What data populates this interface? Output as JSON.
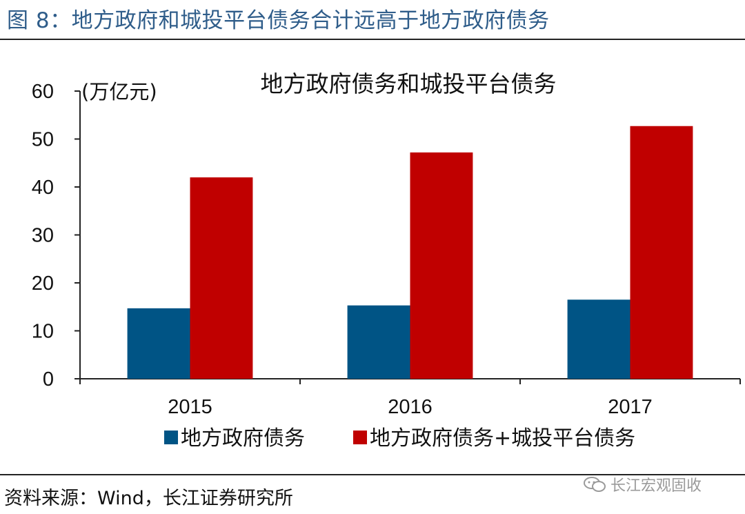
{
  "figure_title": "图 8：地方政府和城投平台债务合计远高于地方政府债务",
  "source": "资料来源：Wind，长江证券研究所",
  "watermark": "长江宏观固收",
  "chart_data": {
    "type": "bar",
    "title": "地方政府债务和城投平台债务",
    "ylabel": "(万亿元)",
    "xlabel": "",
    "categories": [
      "2015",
      "2016",
      "2017"
    ],
    "ylim": [
      0,
      60
    ],
    "yticks": [
      0,
      10,
      20,
      30,
      40,
      50,
      60
    ],
    "grid": false,
    "legend_position": "bottom",
    "series": [
      {
        "name": "地方政府债务",
        "color": "#005485",
        "values": [
          14.7,
          15.3,
          16.5
        ]
      },
      {
        "name": "地方政府债务+城投平台债务",
        "color": "#c00000",
        "values": [
          42.0,
          47.2,
          52.7
        ]
      }
    ]
  }
}
